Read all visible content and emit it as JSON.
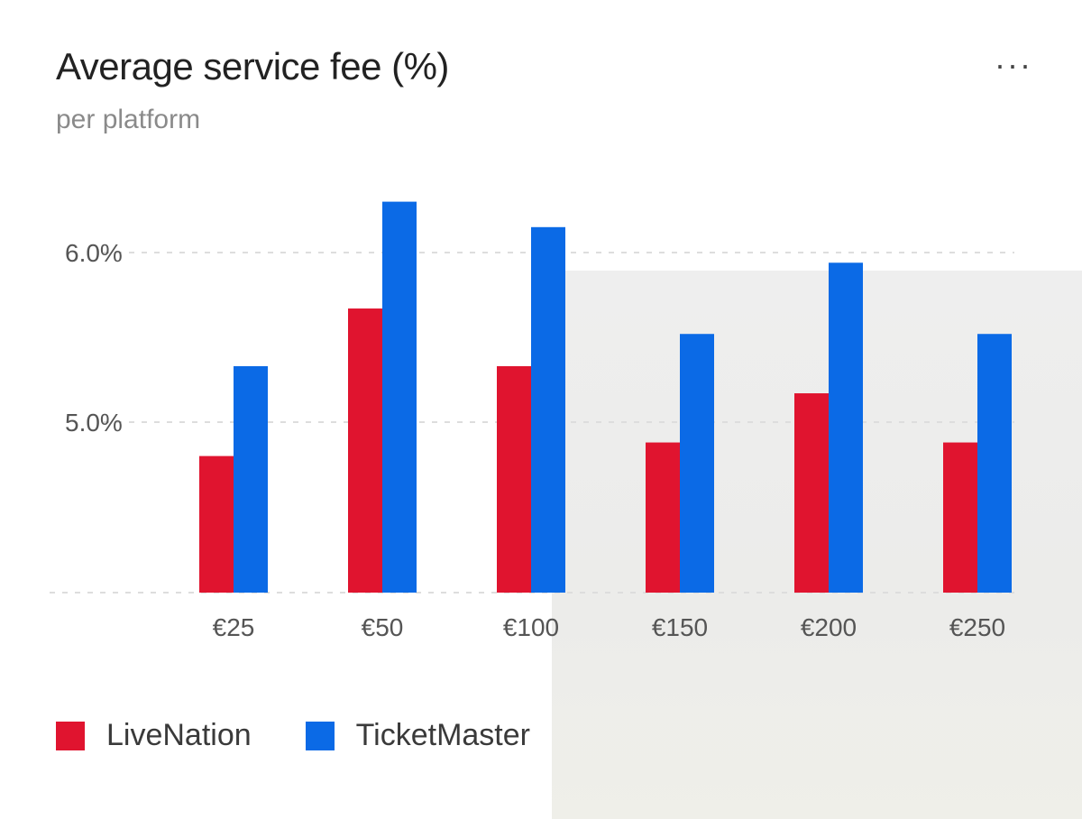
{
  "header": {
    "title": "Average service fee (%)",
    "subtitle": "per platform",
    "more_label": "···"
  },
  "colors": {
    "LiveNation": "#e0142f",
    "TicketMaster": "#0b6ae6",
    "grid": "#dddddd",
    "tick_text": "#555555"
  },
  "chart_data": {
    "type": "bar",
    "title": "Average service fee (%)",
    "subtitle": "per platform",
    "xlabel": "",
    "ylabel": "",
    "categories": [
      "€25",
      "€50",
      "€100",
      "€150",
      "€200",
      "€250"
    ],
    "series": [
      {
        "name": "LiveNation",
        "values": [
          4.8,
          5.67,
          5.33,
          4.88,
          5.17,
          4.88
        ]
      },
      {
        "name": "TicketMaster",
        "values": [
          5.33,
          6.3,
          6.15,
          5.52,
          5.94,
          5.52
        ]
      }
    ],
    "yticks": [
      {
        "value": 5.0,
        "label": "5.0%"
      },
      {
        "value": 6.0,
        "label": "6.0%"
      }
    ],
    "ylim": [
      4.0,
      6.3
    ],
    "grid": true,
    "legend": "bottom-left"
  }
}
